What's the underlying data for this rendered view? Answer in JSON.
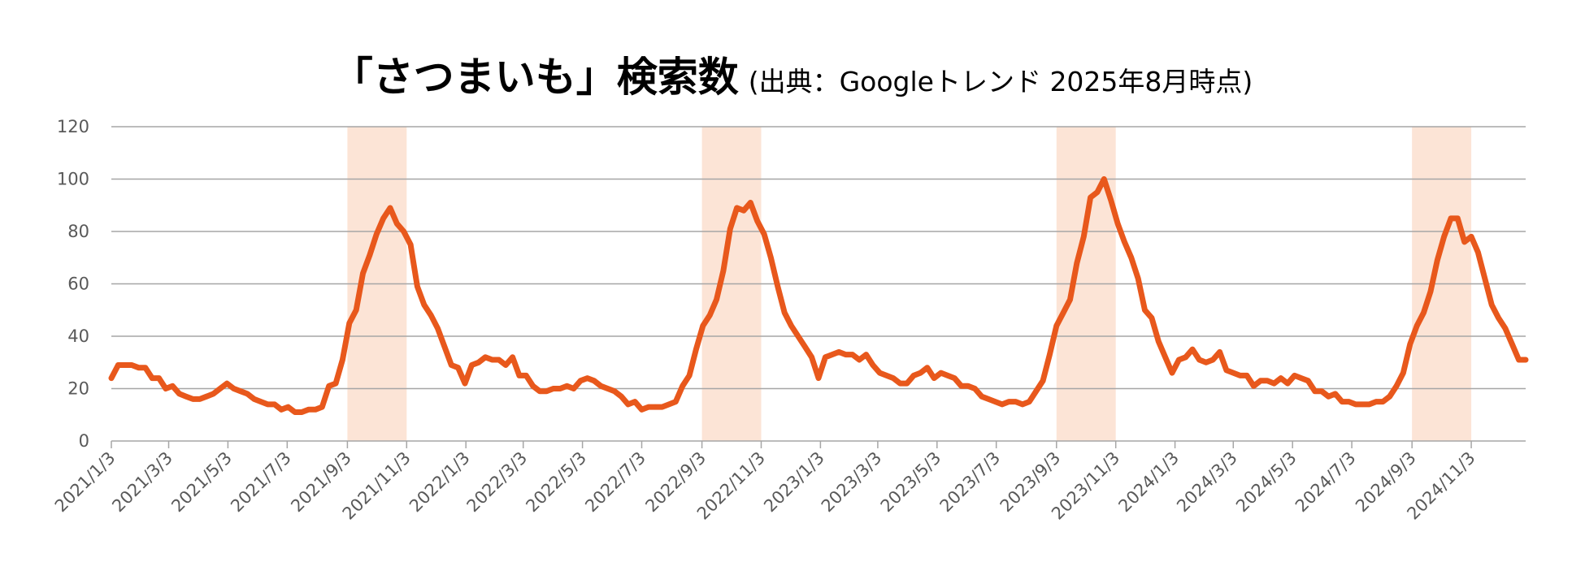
{
  "chart_data": {
    "type": "line",
    "title": "「さつまいも」検索数",
    "subtitle": "(出典：Googleトレンド 2025年8月時点)",
    "xlabel": "",
    "ylabel": "",
    "ylim": [
      0,
      120
    ],
    "yticks": [
      "0",
      "20",
      "40",
      "60",
      "80",
      "100",
      "120"
    ],
    "grid": true,
    "legend": "none",
    "colors": {
      "line": "#E8581C",
      "highlight": "#FCE4D6",
      "grid": "#A6A6A6",
      "axis_text": "#595959"
    },
    "xtick_labels": [
      "2021/1/3",
      "2021/3/3",
      "2021/5/3",
      "2021/7/3",
      "2021/9/3",
      "2021/11/3",
      "2022/1/3",
      "2022/3/3",
      "2022/5/3",
      "2022/7/3",
      "2022/9/3",
      "2022/11/3",
      "2023/1/3",
      "2023/3/3",
      "2023/5/3",
      "2023/7/3",
      "2023/9/3",
      "2023/11/3",
      "2024/1/3",
      "2024/3/3",
      "2024/5/3",
      "2024/7/3",
      "2024/9/3",
      "2024/11/3"
    ],
    "x_start": "2021-01-03",
    "x_end": "2024-12-29",
    "highlight_periods": [
      [
        "2021-09-03",
        "2021-11-03"
      ],
      [
        "2022-09-03",
        "2022-11-03"
      ],
      [
        "2023-09-03",
        "2023-11-03"
      ],
      [
        "2024-09-03",
        "2024-11-03"
      ]
    ],
    "series": [
      {
        "name": "",
        "points": [
          [
            "2021-01-03",
            24
          ],
          [
            "2021-01-10",
            29
          ],
          [
            "2021-01-17",
            29
          ],
          [
            "2021-01-24",
            29
          ],
          [
            "2021-01-31",
            28
          ],
          [
            "2021-02-07",
            28
          ],
          [
            "2021-02-14",
            24
          ],
          [
            "2021-02-21",
            24
          ],
          [
            "2021-02-28",
            20
          ],
          [
            "2021-03-07",
            21
          ],
          [
            "2021-03-14",
            18
          ],
          [
            "2021-03-21",
            17
          ],
          [
            "2021-03-28",
            16
          ],
          [
            "2021-04-04",
            16
          ],
          [
            "2021-04-11",
            17
          ],
          [
            "2021-04-18",
            18
          ],
          [
            "2021-04-25",
            20
          ],
          [
            "2021-05-02",
            22
          ],
          [
            "2021-05-09",
            20
          ],
          [
            "2021-05-16",
            19
          ],
          [
            "2021-05-23",
            18
          ],
          [
            "2021-05-30",
            16
          ],
          [
            "2021-06-06",
            15
          ],
          [
            "2021-06-13",
            14
          ],
          [
            "2021-06-20",
            14
          ],
          [
            "2021-06-27",
            12
          ],
          [
            "2021-07-04",
            13
          ],
          [
            "2021-07-11",
            11
          ],
          [
            "2021-07-18",
            11
          ],
          [
            "2021-07-25",
            12
          ],
          [
            "2021-08-01",
            12
          ],
          [
            "2021-08-08",
            13
          ],
          [
            "2021-08-15",
            21
          ],
          [
            "2021-08-22",
            22
          ],
          [
            "2021-08-29",
            31
          ],
          [
            "2021-09-05",
            45
          ],
          [
            "2021-09-12",
            50
          ],
          [
            "2021-09-19",
            64
          ],
          [
            "2021-09-26",
            71
          ],
          [
            "2021-10-03",
            79
          ],
          [
            "2021-10-10",
            85
          ],
          [
            "2021-10-17",
            89
          ],
          [
            "2021-10-24",
            83
          ],
          [
            "2021-10-31",
            80
          ],
          [
            "2021-11-07",
            75
          ],
          [
            "2021-11-14",
            59
          ],
          [
            "2021-11-21",
            52
          ],
          [
            "2021-11-28",
            48
          ],
          [
            "2021-12-05",
            43
          ],
          [
            "2021-12-12",
            36
          ],
          [
            "2021-12-19",
            29
          ],
          [
            "2021-12-26",
            28
          ],
          [
            "2022-01-02",
            22
          ],
          [
            "2022-01-09",
            29
          ],
          [
            "2022-01-16",
            30
          ],
          [
            "2022-01-23",
            32
          ],
          [
            "2022-01-30",
            31
          ],
          [
            "2022-02-06",
            31
          ],
          [
            "2022-02-13",
            29
          ],
          [
            "2022-02-20",
            32
          ],
          [
            "2022-02-27",
            25
          ],
          [
            "2022-03-06",
            25
          ],
          [
            "2022-03-13",
            21
          ],
          [
            "2022-03-20",
            19
          ],
          [
            "2022-03-27",
            19
          ],
          [
            "2022-04-03",
            20
          ],
          [
            "2022-04-10",
            20
          ],
          [
            "2022-04-17",
            21
          ],
          [
            "2022-04-24",
            20
          ],
          [
            "2022-05-01",
            23
          ],
          [
            "2022-05-08",
            24
          ],
          [
            "2022-05-15",
            23
          ],
          [
            "2022-05-22",
            21
          ],
          [
            "2022-05-29",
            20
          ],
          [
            "2022-06-05",
            19
          ],
          [
            "2022-06-12",
            17
          ],
          [
            "2022-06-19",
            14
          ],
          [
            "2022-06-26",
            15
          ],
          [
            "2022-07-03",
            12
          ],
          [
            "2022-07-10",
            13
          ],
          [
            "2022-07-17",
            13
          ],
          [
            "2022-07-24",
            13
          ],
          [
            "2022-07-31",
            14
          ],
          [
            "2022-08-07",
            15
          ],
          [
            "2022-08-14",
            21
          ],
          [
            "2022-08-21",
            25
          ],
          [
            "2022-08-28",
            35
          ],
          [
            "2022-09-04",
            44
          ],
          [
            "2022-09-11",
            48
          ],
          [
            "2022-09-18",
            54
          ],
          [
            "2022-09-25",
            65
          ],
          [
            "2022-10-02",
            81
          ],
          [
            "2022-10-09",
            89
          ],
          [
            "2022-10-16",
            88
          ],
          [
            "2022-10-23",
            91
          ],
          [
            "2022-10-30",
            84
          ],
          [
            "2022-11-06",
            79
          ],
          [
            "2022-11-13",
            70
          ],
          [
            "2022-11-20",
            59
          ],
          [
            "2022-11-27",
            49
          ],
          [
            "2022-12-04",
            44
          ],
          [
            "2022-12-11",
            40
          ],
          [
            "2022-12-18",
            36
          ],
          [
            "2022-12-25",
            32
          ],
          [
            "2023-01-01",
            24
          ],
          [
            "2023-01-08",
            32
          ],
          [
            "2023-01-15",
            33
          ],
          [
            "2023-01-22",
            34
          ],
          [
            "2023-01-29",
            33
          ],
          [
            "2023-02-05",
            33
          ],
          [
            "2023-02-12",
            31
          ],
          [
            "2023-02-19",
            33
          ],
          [
            "2023-02-26",
            29
          ],
          [
            "2023-03-05",
            26
          ],
          [
            "2023-03-12",
            25
          ],
          [
            "2023-03-19",
            24
          ],
          [
            "2023-03-26",
            22
          ],
          [
            "2023-04-02",
            22
          ],
          [
            "2023-04-09",
            25
          ],
          [
            "2023-04-16",
            26
          ],
          [
            "2023-04-23",
            28
          ],
          [
            "2023-04-30",
            24
          ],
          [
            "2023-05-07",
            26
          ],
          [
            "2023-05-14",
            25
          ],
          [
            "2023-05-21",
            24
          ],
          [
            "2023-05-28",
            21
          ],
          [
            "2023-06-04",
            21
          ],
          [
            "2023-06-11",
            20
          ],
          [
            "2023-06-18",
            17
          ],
          [
            "2023-06-25",
            16
          ],
          [
            "2023-07-02",
            15
          ],
          [
            "2023-07-09",
            14
          ],
          [
            "2023-07-16",
            15
          ],
          [
            "2023-07-23",
            15
          ],
          [
            "2023-07-30",
            14
          ],
          [
            "2023-08-06",
            15
          ],
          [
            "2023-08-13",
            19
          ],
          [
            "2023-08-20",
            23
          ],
          [
            "2023-08-27",
            33
          ],
          [
            "2023-09-03",
            44
          ],
          [
            "2023-09-10",
            49
          ],
          [
            "2023-09-17",
            54
          ],
          [
            "2023-09-24",
            68
          ],
          [
            "2023-10-01",
            78
          ],
          [
            "2023-10-08",
            93
          ],
          [
            "2023-10-15",
            95
          ],
          [
            "2023-10-22",
            100
          ],
          [
            "2023-10-29",
            92
          ],
          [
            "2023-11-05",
            83
          ],
          [
            "2023-11-12",
            76
          ],
          [
            "2023-11-19",
            70
          ],
          [
            "2023-11-26",
            62
          ],
          [
            "2023-12-03",
            50
          ],
          [
            "2023-12-10",
            47
          ],
          [
            "2023-12-17",
            38
          ],
          [
            "2023-12-24",
            32
          ],
          [
            "2023-12-31",
            26
          ],
          [
            "2024-01-07",
            31
          ],
          [
            "2024-01-14",
            32
          ],
          [
            "2024-01-21",
            35
          ],
          [
            "2024-01-28",
            31
          ],
          [
            "2024-02-04",
            30
          ],
          [
            "2024-02-11",
            31
          ],
          [
            "2024-02-18",
            34
          ],
          [
            "2024-02-25",
            27
          ],
          [
            "2024-03-03",
            26
          ],
          [
            "2024-03-10",
            25
          ],
          [
            "2024-03-17",
            25
          ],
          [
            "2024-03-24",
            21
          ],
          [
            "2024-03-31",
            23
          ],
          [
            "2024-04-07",
            23
          ],
          [
            "2024-04-14",
            22
          ],
          [
            "2024-04-21",
            24
          ],
          [
            "2024-04-28",
            22
          ],
          [
            "2024-05-05",
            25
          ],
          [
            "2024-05-12",
            24
          ],
          [
            "2024-05-19",
            23
          ],
          [
            "2024-05-26",
            19
          ],
          [
            "2024-06-02",
            19
          ],
          [
            "2024-06-09",
            17
          ],
          [
            "2024-06-16",
            18
          ],
          [
            "2024-06-23",
            15
          ],
          [
            "2024-06-30",
            15
          ],
          [
            "2024-07-07",
            14
          ],
          [
            "2024-07-14",
            14
          ],
          [
            "2024-07-21",
            14
          ],
          [
            "2024-07-28",
            15
          ],
          [
            "2024-08-04",
            15
          ],
          [
            "2024-08-11",
            17
          ],
          [
            "2024-08-18",
            21
          ],
          [
            "2024-08-25",
            26
          ],
          [
            "2024-09-01",
            37
          ],
          [
            "2024-09-08",
            44
          ],
          [
            "2024-09-15",
            49
          ],
          [
            "2024-09-22",
            57
          ],
          [
            "2024-09-29",
            69
          ],
          [
            "2024-10-06",
            78
          ],
          [
            "2024-10-13",
            85
          ],
          [
            "2024-10-20",
            85
          ],
          [
            "2024-10-27",
            76
          ],
          [
            "2024-11-03",
            78
          ],
          [
            "2024-11-10",
            72
          ],
          [
            "2024-11-17",
            62
          ],
          [
            "2024-11-24",
            52
          ],
          [
            "2024-12-01",
            47
          ],
          [
            "2024-12-08",
            43
          ],
          [
            "2024-12-15",
            37
          ],
          [
            "2024-12-22",
            31
          ],
          [
            "2024-12-29",
            31
          ]
        ]
      }
    ]
  }
}
